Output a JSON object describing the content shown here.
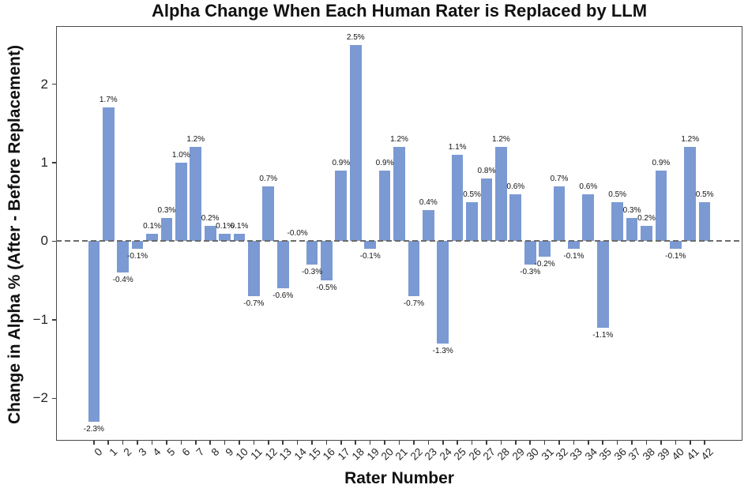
{
  "chart_data": {
    "type": "bar",
    "title": "Alpha Change When Each Human Rater is Replaced by LLM",
    "xlabel": "Rater Number",
    "ylabel": "Change in Alpha % (After - Before Replacement)",
    "categories": [
      "0",
      "1",
      "2",
      "3",
      "4",
      "5",
      "6",
      "7",
      "8",
      "9",
      "10",
      "11",
      "12",
      "13",
      "14",
      "15",
      "16",
      "17",
      "18",
      "19",
      "20",
      "21",
      "22",
      "23",
      "24",
      "25",
      "26",
      "27",
      "28",
      "29",
      "30",
      "31",
      "32",
      "33",
      "34",
      "35",
      "36",
      "37",
      "38",
      "39",
      "40",
      "41",
      "42"
    ],
    "values": [
      -2.3,
      1.7,
      -0.4,
      -0.1,
      0.1,
      0.3,
      1.0,
      1.2,
      0.2,
      0.1,
      0.1,
      -0.7,
      0.7,
      -0.6,
      -0.0,
      -0.3,
      -0.5,
      0.9,
      2.5,
      -0.1,
      0.9,
      1.2,
      -0.7,
      0.4,
      -1.3,
      1.1,
      0.5,
      0.8,
      1.2,
      0.6,
      -0.3,
      -0.2,
      0.7,
      -0.1,
      0.6,
      -1.1,
      0.5,
      0.3,
      0.2,
      0.9,
      -0.1,
      1.2,
      0.5
    ],
    "bar_labels": [
      "-2.3%",
      "1.7%",
      "-0.4%",
      "-0.1%",
      "0.1%",
      "0.3%",
      "1.0%",
      "1.2%",
      "0.2%",
      "0.1%",
      "0.1%",
      "-0.7%",
      "0.7%",
      "-0.6%",
      "-0.0%",
      "-0.3%",
      "-0.5%",
      "0.9%",
      "2.5%",
      "-0.1%",
      "0.9%",
      "1.2%",
      "-0.7%",
      "0.4%",
      "-1.3%",
      "1.1%",
      "0.5%",
      "0.8%",
      "1.2%",
      "0.6%",
      "-0.3%",
      "-0.2%",
      "0.7%",
      "-0.1%",
      "0.6%",
      "-1.1%",
      "0.5%",
      "0.3%",
      "0.2%",
      "0.9%",
      "-0.1%",
      "1.2%",
      "0.5%"
    ],
    "ytick_values": [
      2,
      1,
      0,
      -1,
      -2
    ],
    "ytick_labels": [
      "2",
      "1",
      "0",
      "−1",
      "−2"
    ],
    "ylim": [
      -2.54,
      2.74
    ],
    "xlim": [
      -2.6,
      44.6
    ],
    "bar_width": 0.8,
    "bar_color": "#7B9AD3",
    "zero_line_color": "#6b6b6b",
    "zero_line_style": "dashed",
    "grid": false,
    "legend": null
  }
}
